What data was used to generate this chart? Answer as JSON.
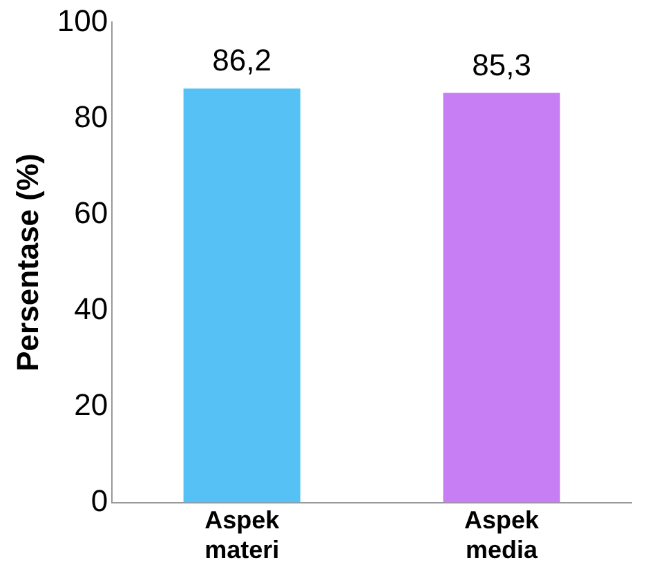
{
  "chart_data": {
    "type": "bar",
    "ylabel": "Persentase (%)",
    "categories": [
      "Aspek materi",
      "Aspek media"
    ],
    "values": [
      86.2,
      85.3
    ],
    "colors": [
      "#55c1f5",
      "#c77df3"
    ],
    "value_labels": [
      "86,2",
      "85,3"
    ],
    "ylim": [
      0,
      100
    ],
    "yticks": [
      0,
      20,
      40,
      60,
      80,
      100
    ],
    "grid": false,
    "legend": false
  }
}
